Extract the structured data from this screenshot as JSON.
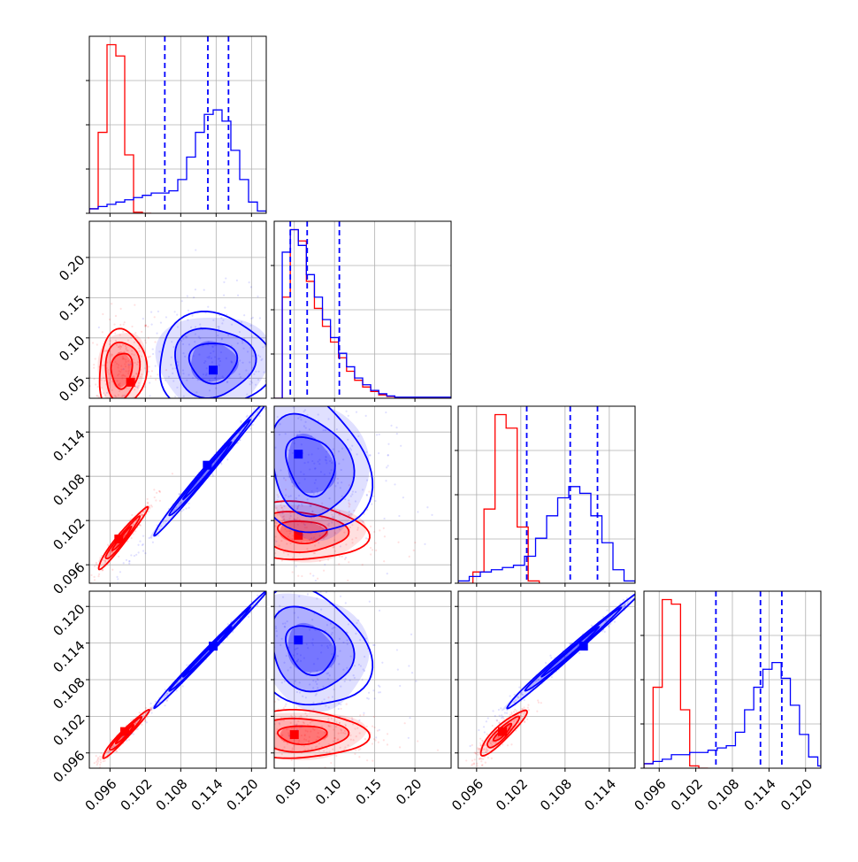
{
  "colors": {
    "series_a": "#ff0000",
    "series_b": "#0000ff",
    "grid": "#b0b0b0",
    "frame": "#000000"
  },
  "chart_data": {
    "type": "corner",
    "grid": true,
    "legend": "none",
    "parameters": [
      {
        "range": [
          0.0925,
          0.1225
        ],
        "ticks": [
          0.096,
          0.102,
          0.108,
          0.114,
          0.12
        ],
        "tick_labels": [
          "0.096",
          "0.102",
          "0.108",
          "0.114",
          "0.120"
        ]
      },
      {
        "range": [
          0.025,
          0.245
        ],
        "ticks": [
          0.05,
          0.1,
          0.15,
          0.2
        ],
        "tick_labels": [
          "0.05",
          "0.10",
          "0.15",
          "0.20"
        ]
      },
      {
        "range": [
          0.0935,
          0.1175
        ],
        "ticks": [
          0.096,
          0.102,
          0.108,
          0.114
        ],
        "tick_labels": [
          "0.096",
          "0.102",
          "0.108",
          "0.114"
        ]
      },
      {
        "range": [
          0.0935,
          0.1225
        ],
        "ticks": [
          0.096,
          0.102,
          0.108,
          0.114,
          0.12
        ],
        "tick_labels": [
          "0.096",
          "0.102",
          "0.108",
          "0.114",
          "0.120"
        ]
      }
    ],
    "quantiles": [
      [
        0.1053,
        0.1126,
        0.1161
      ],
      [
        0.045,
        0.066,
        0.106
      ],
      [
        0.1028,
        0.1087,
        0.1124
      ],
      [
        0.1053,
        0.1126,
        0.1161
      ]
    ],
    "series": [
      {
        "color": "#ff0000",
        "hist": [
          {
            "bins": [
              0.0925,
              0.094,
              0.0955,
              0.097,
              0.0985,
              0.1,
              0.1015,
              0.103
            ],
            "counts": [
              0.2,
              3.6,
              7.5,
              7.0,
              2.6,
              0.05,
              0
            ]
          },
          {
            "bins": [
              0.025,
              0.035,
              0.045,
              0.055,
              0.065,
              0.075,
              0.085,
              0.095,
              0.105,
              0.115,
              0.125,
              0.135,
              0.145,
              0.155,
              0.165,
              0.175,
              0.245
            ],
            "counts": [
              0,
              4.5,
              7.5,
              7.0,
              5.2,
              4.0,
              3.2,
              2.5,
              1.8,
              1.2,
              0.8,
              0.5,
              0.3,
              0.15,
              0.08,
              0.03
            ]
          },
          {
            "bins": [
              0.0935,
              0.0955,
              0.097,
              0.0985,
              0.1,
              0.1015,
              0.103,
              0.1045
            ],
            "counts": [
              0,
              0.5,
              3.3,
              7.5,
              6.9,
              2.5,
              0.1
            ]
          },
          {
            "bins": [
              0.0935,
              0.095,
              0.0965,
              0.098,
              0.0995,
              0.101,
              0.1025,
              0.104
            ],
            "counts": [
              0.2,
              3.6,
              7.5,
              7.3,
              2.6,
              0.1,
              0
            ]
          }
        ],
        "pairs": [
          {
            "i": 0,
            "j": 1,
            "center": [
              0.098,
              0.06
            ],
            "spread": [
              0.0016,
              0.02
            ],
            "corr": 0.1,
            "levels": [
              1.1,
              1.8,
              2.5
            ],
            "peak": [
              0.0995,
              0.045
            ]
          },
          {
            "i": 0,
            "j": 2,
            "center": [
              0.098,
              0.0995
            ],
            "spread": [
              0.0016,
              0.0016
            ],
            "corr": 0.97,
            "levels": [
              1.0,
              1.8,
              2.6
            ],
            "peak": [
              0.0975,
              0.0995
            ]
          },
          {
            "i": 1,
            "j": 2,
            "center": [
              0.06,
              0.1005
            ],
            "spread": [
              0.03,
              0.0015
            ],
            "corr": -0.1,
            "levels": [
              1.0,
              1.8,
              2.6
            ],
            "peak": [
              0.055,
              0.1
            ]
          },
          {
            "i": 0,
            "j": 3,
            "center": [
              0.0985,
              0.099
            ],
            "spread": [
              0.0015,
              0.0015
            ],
            "corr": 0.97,
            "levels": [
              1.0,
              1.8,
              2.6
            ],
            "peak": [
              0.0985,
              0.0995
            ]
          },
          {
            "i": 1,
            "j": 3,
            "center": [
              0.06,
              0.099
            ],
            "spread": [
              0.03,
              0.0015
            ],
            "corr": 0.0,
            "levels": [
              1.0,
              1.8,
              2.6
            ],
            "peak": [
              0.05,
              0.099
            ]
          },
          {
            "i": 2,
            "j": 3,
            "center": [
              0.0995,
              0.0993
            ],
            "spread": [
              0.0012,
              0.0014
            ],
            "corr": 0.9,
            "levels": [
              1.0,
              1.8,
              2.6
            ],
            "peak": [
              0.0995,
              0.0995
            ]
          }
        ]
      },
      {
        "color": "#0000ff",
        "hist": [
          {
            "bins": [
              0.0925,
              0.094,
              0.0955,
              0.097,
              0.0985,
              0.1,
              0.1015,
              0.103,
              0.1045,
              0.106,
              0.1075,
              0.109,
              0.1105,
              0.112,
              0.1135,
              0.115,
              0.1165,
              0.118,
              0.1195,
              0.121,
              0.1225
            ],
            "counts": [
              0.2,
              0.3,
              0.4,
              0.5,
              0.6,
              0.7,
              0.8,
              0.9,
              0.9,
              1.0,
              1.5,
              2.5,
              3.6,
              4.4,
              4.6,
              4.1,
              2.8,
              1.5,
              0.5,
              0.1
            ]
          },
          {
            "bins": [
              0.025,
              0.035,
              0.045,
              0.055,
              0.065,
              0.075,
              0.085,
              0.095,
              0.105,
              0.115,
              0.125,
              0.135,
              0.145,
              0.155,
              0.165,
              0.175,
              0.245
            ],
            "counts": [
              0,
              6.5,
              7.5,
              6.8,
              5.5,
              4.5,
              3.5,
              2.7,
              2.0,
              1.4,
              0.9,
              0.6,
              0.35,
              0.2,
              0.1,
              0.05
            ]
          },
          {
            "bins": [
              0.0935,
              0.095,
              0.0965,
              0.098,
              0.0995,
              0.101,
              0.1025,
              0.104,
              0.1055,
              0.107,
              0.1085,
              0.11,
              0.1115,
              0.113,
              0.1145,
              0.116,
              0.1175
            ],
            "counts": [
              0.1,
              0.3,
              0.5,
              0.6,
              0.7,
              0.8,
              1.2,
              2.0,
              3.0,
              3.8,
              4.3,
              4.0,
              3.0,
              1.8,
              0.6,
              0.1
            ]
          },
          {
            "bins": [
              0.0935,
              0.095,
              0.0965,
              0.098,
              0.0995,
              0.101,
              0.1025,
              0.104,
              0.1055,
              0.107,
              0.1085,
              0.11,
              0.1115,
              0.113,
              0.1145,
              0.116,
              0.1175,
              0.119,
              0.1205,
              0.122,
              0.1225
            ],
            "counts": [
              0.2,
              0.3,
              0.4,
              0.6,
              0.6,
              0.7,
              0.7,
              0.8,
              0.9,
              1.0,
              1.6,
              2.6,
              3.6,
              4.4,
              4.7,
              4.0,
              2.8,
              1.5,
              0.5,
              0.1
            ]
          }
        ],
        "pairs": [
          {
            "i": 0,
            "j": 1,
            "center": [
              0.1135,
              0.07
            ],
            "spread": [
              0.004,
              0.025
            ],
            "corr": 0.0,
            "levels": [
              1.0,
              1.7,
              2.4
            ],
            "peak": [
              0.1135,
              0.06
            ]
          },
          {
            "i": 0,
            "j": 2,
            "center": [
              0.1125,
              0.1087
            ],
            "spread": [
              0.004,
              0.0038
            ],
            "corr": 0.995,
            "levels": [
              1.0,
              1.7,
              2.4
            ],
            "peak": [
              0.1125,
              0.1095
            ]
          },
          {
            "i": 1,
            "j": 2,
            "center": [
              0.07,
              0.1095
            ],
            "spread": [
              0.03,
              0.004
            ],
            "corr": -0.2,
            "levels": [
              1.0,
              1.7,
              2.4
            ],
            "peak": [
              0.055,
              0.111
            ]
          },
          {
            "i": 0,
            "j": 3,
            "center": [
              0.1125,
              0.1125
            ],
            "spread": [
              0.004,
              0.004
            ],
            "corr": 0.997,
            "levels": [
              1.0,
              1.7,
              2.4
            ],
            "peak": [
              0.1135,
              0.1135
            ]
          },
          {
            "i": 1,
            "j": 3,
            "center": [
              0.07,
              0.113
            ],
            "spread": [
              0.03,
              0.004
            ],
            "corr": -0.2,
            "levels": [
              1.0,
              1.7,
              2.4
            ],
            "peak": [
              0.055,
              0.1145
            ]
          },
          {
            "i": 2,
            "j": 3,
            "center": [
              0.1087,
              0.1125
            ],
            "spread": [
              0.0038,
              0.004
            ],
            "corr": 0.995,
            "levels": [
              1.0,
              1.7,
              2.4
            ],
            "peak": [
              0.1105,
              0.1135
            ]
          }
        ]
      }
    ]
  }
}
